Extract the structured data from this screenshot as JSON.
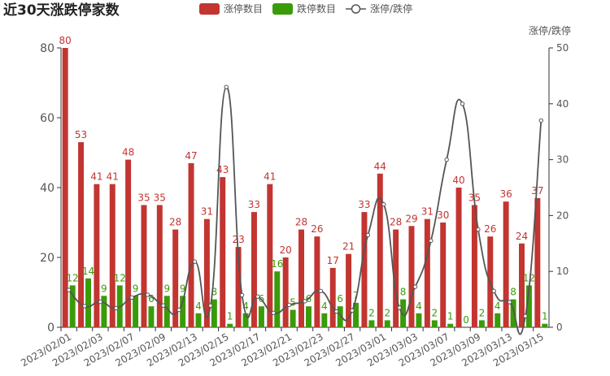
{
  "chart_data": {
    "type": "bar-line",
    "title": "近30天涨跌停家数",
    "categories": [
      "2023/02/01",
      null,
      "2023/02/03",
      null,
      "2023/02/07",
      null,
      "2023/02/09",
      null,
      "2023/02/13",
      null,
      "2023/02/15",
      null,
      "2023/02/17",
      null,
      "2023/02/21",
      null,
      "2023/02/23",
      null,
      "2023/02/27",
      null,
      "2023/03/01",
      null,
      "2023/03/03",
      null,
      "2023/03/07",
      null,
      "2023/03/09",
      null,
      "2023/03/13",
      null,
      "2023/03/15"
    ],
    "series": [
      {
        "name": "涨停数目",
        "color": "#c23531",
        "values": [
          80,
          53,
          41,
          41,
          48,
          35,
          35,
          28,
          47,
          31,
          43,
          23,
          33,
          41,
          20,
          28,
          26,
          17,
          21,
          33,
          44,
          28,
          29,
          31,
          30,
          40,
          35,
          26,
          36,
          24,
          37
        ]
      },
      {
        "name": "跌停数目",
        "color": "#3a9b0a",
        "values": [
          12,
          14,
          9,
          12,
          9,
          6,
          9,
          9,
          4,
          8,
          1,
          4,
          6,
          16,
          5,
          6,
          4,
          6,
          7,
          2,
          2,
          8,
          4,
          2,
          1,
          0,
          2,
          4,
          8,
          12,
          1
        ]
      },
      {
        "name": "涨停/跌停",
        "color": "#555555",
        "axis": "y2",
        "values": [
          6.67,
          3.79,
          4.56,
          3.42,
          5.33,
          5.83,
          3.89,
          3.11,
          11.75,
          3.88,
          43,
          5.75,
          5.5,
          2.56,
          4,
          4.67,
          6.5,
          2.83,
          3,
          16.5,
          22,
          3.5,
          7.25,
          15.5,
          30,
          40,
          17.5,
          6.5,
          4.5,
          2,
          37
        ]
      }
    ],
    "ylim": [
      0,
      80
    ],
    "yticks": [
      0,
      20,
      40,
      60,
      80
    ],
    "y2label": "涨停/跌停",
    "y2lim": [
      0,
      50
    ],
    "y2ticks": [
      0,
      10,
      20,
      30,
      40,
      50
    ]
  }
}
